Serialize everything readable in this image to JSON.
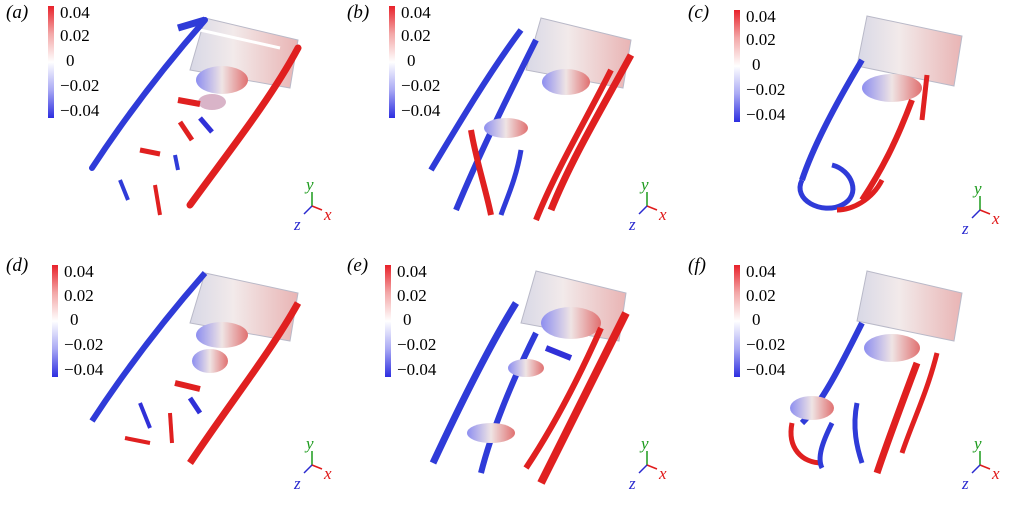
{
  "colorbar": {
    "ticks": [
      "0.04",
      "0.02",
      "0",
      "−0.02",
      "−0.04"
    ],
    "top_color": "#e8212a",
    "mid_color": "#ffffff",
    "bottom_color": "#2d2ee0"
  },
  "axes": {
    "y": "y",
    "x": "x",
    "z": "z",
    "y_color": "#1a9a1a",
    "x_color": "#e01b1b",
    "z_color": "#2a2acf"
  },
  "panels": [
    {
      "label": "(a)"
    },
    {
      "label": "(b)"
    },
    {
      "label": "(c)"
    },
    {
      "label": "(d)"
    },
    {
      "label": "(e)"
    },
    {
      "label": "(f)"
    }
  ]
}
